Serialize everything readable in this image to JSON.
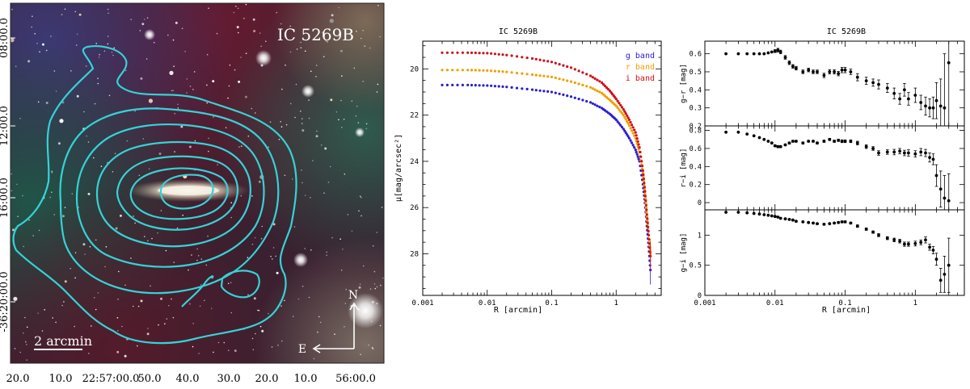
{
  "image_panel": {
    "title": "IC 5269B",
    "dec_ticks": [
      "08:00.0",
      "12:00.0",
      "16:00.0",
      "-36:20:00.0"
    ],
    "ra_ticks": [
      "20.0",
      "10.0",
      "22:57:00.0",
      "50.0",
      "40.0",
      "30.0",
      "20.0",
      "10.0",
      "56:00.0"
    ],
    "scale_label": "2 arcmin",
    "north_label": "N",
    "east_label": "E",
    "contour_color": "#35d3d6"
  },
  "chart_data": [
    {
      "type": "scatter",
      "title": "IC 5269B",
      "xlabel": "R [arcmin]",
      "ylabel": "μ[mag/arcsec²]",
      "xscale": "log",
      "xlim": [
        0.001,
        5
      ],
      "ylim": [
        29.8,
        18.8
      ],
      "xticks": [
        0.001,
        0.01,
        0.1,
        1
      ],
      "xtick_labels": [
        "0.001",
        "0.01",
        "0.1",
        "1"
      ],
      "yticks": [
        20,
        22,
        24,
        26,
        28
      ],
      "ytick_labels": [
        "20",
        "22",
        "24",
        "26",
        "28"
      ],
      "legend_position": "top-right",
      "series": [
        {
          "name": "g band",
          "color": "#2a1fd0",
          "x": [
            0.002,
            0.005,
            0.01,
            0.02,
            0.05,
            0.1,
            0.2,
            0.4,
            0.6,
            0.8,
            1.0,
            1.3,
            1.6,
            2.0,
            2.3,
            2.6,
            2.8,
            3.0,
            3.2,
            3.4
          ],
          "y": [
            20.7,
            20.7,
            20.72,
            20.78,
            20.9,
            21.0,
            21.2,
            21.45,
            21.7,
            21.95,
            22.2,
            22.6,
            23.0,
            23.5,
            24.0,
            25.0,
            25.8,
            26.8,
            27.7,
            28.7
          ]
        },
        {
          "name": "r band",
          "color": "#f0a000",
          "x": [
            0.002,
            0.005,
            0.01,
            0.02,
            0.05,
            0.1,
            0.2,
            0.4,
            0.6,
            0.8,
            1.0,
            1.3,
            1.6,
            2.0,
            2.3,
            2.6,
            2.8,
            3.0,
            3.2,
            3.4
          ],
          "y": [
            20.05,
            20.05,
            20.07,
            20.13,
            20.25,
            20.35,
            20.55,
            20.8,
            21.05,
            21.35,
            21.6,
            22.0,
            22.45,
            23.0,
            23.6,
            24.5,
            25.4,
            26.4,
            27.2,
            28.0
          ]
        },
        {
          "name": "i band",
          "color": "#d0101a",
          "x": [
            0.002,
            0.005,
            0.01,
            0.02,
            0.05,
            0.1,
            0.2,
            0.4,
            0.6,
            0.8,
            1.0,
            1.3,
            1.6,
            2.0,
            2.3,
            2.6,
            2.8,
            3.0,
            3.2,
            3.4
          ],
          "y": [
            19.3,
            19.3,
            19.32,
            19.4,
            19.55,
            19.7,
            19.95,
            20.3,
            20.6,
            20.95,
            21.3,
            21.75,
            22.2,
            22.75,
            23.4,
            24.4,
            25.3,
            26.3,
            27.2,
            28.1
          ]
        }
      ]
    },
    {
      "type": "scatter",
      "title": "IC 5269B",
      "xlabel": "R [arcmin]",
      "xscale": "log",
      "xlim": [
        0.001,
        5
      ],
      "xticks": [
        0.001,
        0.01,
        0.1,
        1
      ],
      "xtick_labels": [
        "0.001",
        "0.01",
        "0.1",
        "1"
      ],
      "subplots": [
        {
          "ylabel": "g−r [mag]",
          "ylim": [
            0.2,
            0.67
          ],
          "yticks": [
            0.2,
            0.3,
            0.4,
            0.5,
            0.6
          ],
          "ytick_labels": [
            "0.2",
            "0.3",
            "0.4",
            "0.5",
            "0.6"
          ],
          "x": [
            0.002,
            0.003,
            0.004,
            0.005,
            0.006,
            0.007,
            0.008,
            0.009,
            0.01,
            0.011,
            0.012,
            0.014,
            0.016,
            0.018,
            0.02,
            0.025,
            0.03,
            0.035,
            0.04,
            0.05,
            0.06,
            0.07,
            0.08,
            0.09,
            0.1,
            0.12,
            0.15,
            0.2,
            0.25,
            0.3,
            0.4,
            0.5,
            0.6,
            0.7,
            0.8,
            1.0,
            1.2,
            1.4,
            1.6,
            1.8,
            2.0,
            2.3,
            2.6,
            3.0
          ],
          "y": [
            0.6,
            0.6,
            0.6,
            0.6,
            0.6,
            0.6,
            0.605,
            0.61,
            0.615,
            0.62,
            0.61,
            0.58,
            0.55,
            0.53,
            0.52,
            0.5,
            0.51,
            0.5,
            0.5,
            0.48,
            0.5,
            0.5,
            0.49,
            0.51,
            0.51,
            0.5,
            0.47,
            0.45,
            0.44,
            0.43,
            0.41,
            0.38,
            0.35,
            0.4,
            0.35,
            0.37,
            0.33,
            0.31,
            0.3,
            0.3,
            0.34,
            0.31,
            0.3,
            0.55
          ],
          "err": [
            0.005,
            0.005,
            0.005,
            0.005,
            0.005,
            0.005,
            0.005,
            0.005,
            0.008,
            0.01,
            0.01,
            0.01,
            0.01,
            0.01,
            0.01,
            0.01,
            0.01,
            0.01,
            0.01,
            0.012,
            0.012,
            0.012,
            0.012,
            0.015,
            0.015,
            0.015,
            0.02,
            0.02,
            0.02,
            0.025,
            0.025,
            0.03,
            0.03,
            0.035,
            0.035,
            0.04,
            0.04,
            0.05,
            0.05,
            0.06,
            0.1,
            0.15,
            0.3,
            0.4
          ]
        },
        {
          "ylabel": "r−i [mag]",
          "ylim": [
            -0.08,
            0.85
          ],
          "yticks": [
            0,
            0.2,
            0.4,
            0.6,
            0.8
          ],
          "ytick_labels": [
            "0",
            "0.2",
            "0.4",
            "0.6",
            "0.8"
          ],
          "x": [
            0.002,
            0.003,
            0.004,
            0.005,
            0.006,
            0.007,
            0.008,
            0.009,
            0.01,
            0.011,
            0.012,
            0.014,
            0.016,
            0.018,
            0.02,
            0.025,
            0.03,
            0.035,
            0.04,
            0.05,
            0.06,
            0.07,
            0.08,
            0.09,
            0.1,
            0.12,
            0.15,
            0.2,
            0.25,
            0.3,
            0.4,
            0.5,
            0.6,
            0.7,
            0.8,
            1.0,
            1.2,
            1.4,
            1.6,
            1.8,
            2.0,
            2.3,
            2.6,
            3.0
          ],
          "y": [
            0.78,
            0.78,
            0.76,
            0.74,
            0.72,
            0.7,
            0.68,
            0.66,
            0.63,
            0.62,
            0.62,
            0.64,
            0.66,
            0.68,
            0.68,
            0.66,
            0.68,
            0.68,
            0.66,
            0.68,
            0.7,
            0.68,
            0.69,
            0.68,
            0.68,
            0.68,
            0.66,
            0.62,
            0.6,
            0.55,
            0.56,
            0.56,
            0.57,
            0.55,
            0.55,
            0.54,
            0.56,
            0.55,
            0.5,
            0.48,
            0.3,
            0.15,
            0.05,
            0.02
          ],
          "err": [
            0.005,
            0.005,
            0.005,
            0.005,
            0.005,
            0.005,
            0.005,
            0.005,
            0.01,
            0.01,
            0.01,
            0.01,
            0.01,
            0.01,
            0.01,
            0.01,
            0.01,
            0.01,
            0.01,
            0.012,
            0.012,
            0.012,
            0.012,
            0.015,
            0.015,
            0.015,
            0.02,
            0.02,
            0.02,
            0.025,
            0.025,
            0.03,
            0.03,
            0.03,
            0.035,
            0.035,
            0.04,
            0.04,
            0.05,
            0.06,
            0.12,
            0.2,
            0.25,
            0.3
          ]
        },
        {
          "ylabel": "g−i [mag]",
          "ylim": [
            0,
            1.42
          ],
          "yticks": [
            0,
            0.5,
            1
          ],
          "ytick_labels": [
            "0",
            "0.5",
            "1"
          ],
          "x": [
            0.002,
            0.003,
            0.004,
            0.005,
            0.006,
            0.007,
            0.008,
            0.009,
            0.01,
            0.011,
            0.012,
            0.014,
            0.016,
            0.018,
            0.02,
            0.025,
            0.03,
            0.035,
            0.04,
            0.05,
            0.06,
            0.07,
            0.08,
            0.09,
            0.1,
            0.12,
            0.15,
            0.2,
            0.25,
            0.3,
            0.4,
            0.5,
            0.6,
            0.7,
            0.8,
            1.0,
            1.2,
            1.4,
            1.6,
            1.8,
            2.0,
            2.3,
            2.6,
            3.0
          ],
          "y": [
            1.38,
            1.38,
            1.37,
            1.36,
            1.35,
            1.34,
            1.33,
            1.32,
            1.31,
            1.3,
            1.28,
            1.27,
            1.26,
            1.25,
            1.23,
            1.22,
            1.21,
            1.2,
            1.19,
            1.18,
            1.19,
            1.2,
            1.21,
            1.22,
            1.22,
            1.2,
            1.15,
            1.1,
            1.05,
            1.0,
            0.95,
            0.92,
            0.9,
            0.85,
            0.85,
            0.86,
            0.88,
            0.92,
            0.8,
            0.75,
            0.6,
            0.25,
            0.35,
            0.5
          ],
          "err": [
            0.005,
            0.005,
            0.005,
            0.005,
            0.005,
            0.005,
            0.005,
            0.005,
            0.008,
            0.01,
            0.01,
            0.01,
            0.01,
            0.01,
            0.01,
            0.01,
            0.01,
            0.01,
            0.01,
            0.012,
            0.012,
            0.012,
            0.012,
            0.015,
            0.015,
            0.015,
            0.02,
            0.02,
            0.02,
            0.025,
            0.025,
            0.03,
            0.03,
            0.035,
            0.035,
            0.04,
            0.04,
            0.05,
            0.05,
            0.06,
            0.1,
            0.2,
            0.3,
            0.45
          ]
        }
      ]
    }
  ]
}
